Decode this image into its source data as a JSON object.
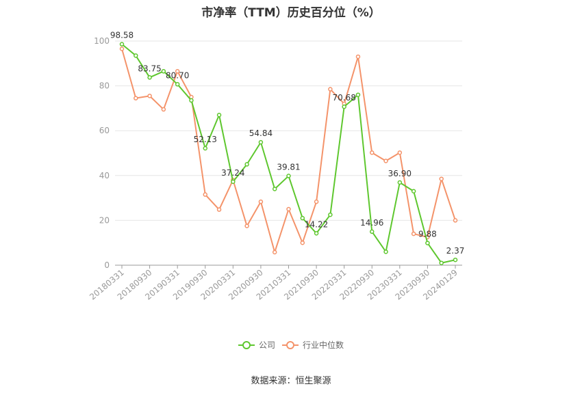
{
  "title": "市净率（TTM）历史百分位（%）",
  "source": "数据来源：恒生聚源",
  "chart_data": {
    "type": "line",
    "title": "市净率（TTM）历史百分位（%）",
    "x_tick_labels": [
      "20180331",
      "20180930",
      "20190331",
      "20190930",
      "20200331",
      "20200930",
      "20210331",
      "20210930",
      "20220331",
      "20220930",
      "20230331",
      "20230930",
      "20240129"
    ],
    "x": [
      "20180331",
      "20180630",
      "20180930",
      "20181231",
      "20190331",
      "20190630",
      "20190930",
      "20191231",
      "20200331",
      "20200630",
      "20200930",
      "20201231",
      "20210331",
      "20210630",
      "20210930",
      "20211231",
      "20220331",
      "20220630",
      "20220930",
      "20221231",
      "20230331",
      "20230630",
      "20230930",
      "20231231",
      "20240129"
    ],
    "ylim": [
      0,
      100
    ],
    "y_ticks": [
      0,
      20,
      40,
      60,
      80,
      100
    ],
    "grid": true,
    "legend_position": "bottom",
    "series": [
      {
        "name": "公司",
        "color": "#5ec72e",
        "values": [
          98.58,
          93.5,
          83.75,
          86.5,
          80.7,
          73.5,
          52.13,
          67.0,
          37.24,
          45.0,
          54.84,
          34.0,
          39.81,
          21.0,
          14.22,
          22.5,
          70.68,
          76.0,
          14.96,
          6.0,
          36.9,
          33.0,
          9.88,
          1.0,
          2.37
        ],
        "labels": {
          "0": "98.58",
          "2": "83.75",
          "4": "80.70",
          "6": "52.13",
          "8": "37.24",
          "10": "54.84",
          "12": "39.81",
          "14": "14.22",
          "16": "70.68",
          "18": "14.96",
          "20": "36.90",
          "22": "9.88",
          "24": "2.37"
        }
      },
      {
        "name": "行业中位数",
        "color": "#f4936a",
        "values": [
          96.5,
          74.5,
          75.5,
          69.5,
          86.5,
          75.0,
          31.5,
          24.8,
          38.0,
          17.5,
          28.3,
          5.8,
          25.0,
          10.0,
          28.3,
          78.5,
          72.0,
          93.0,
          50.2,
          46.5,
          50.2,
          14.0,
          12.5,
          38.5,
          20.0
        ]
      }
    ]
  }
}
